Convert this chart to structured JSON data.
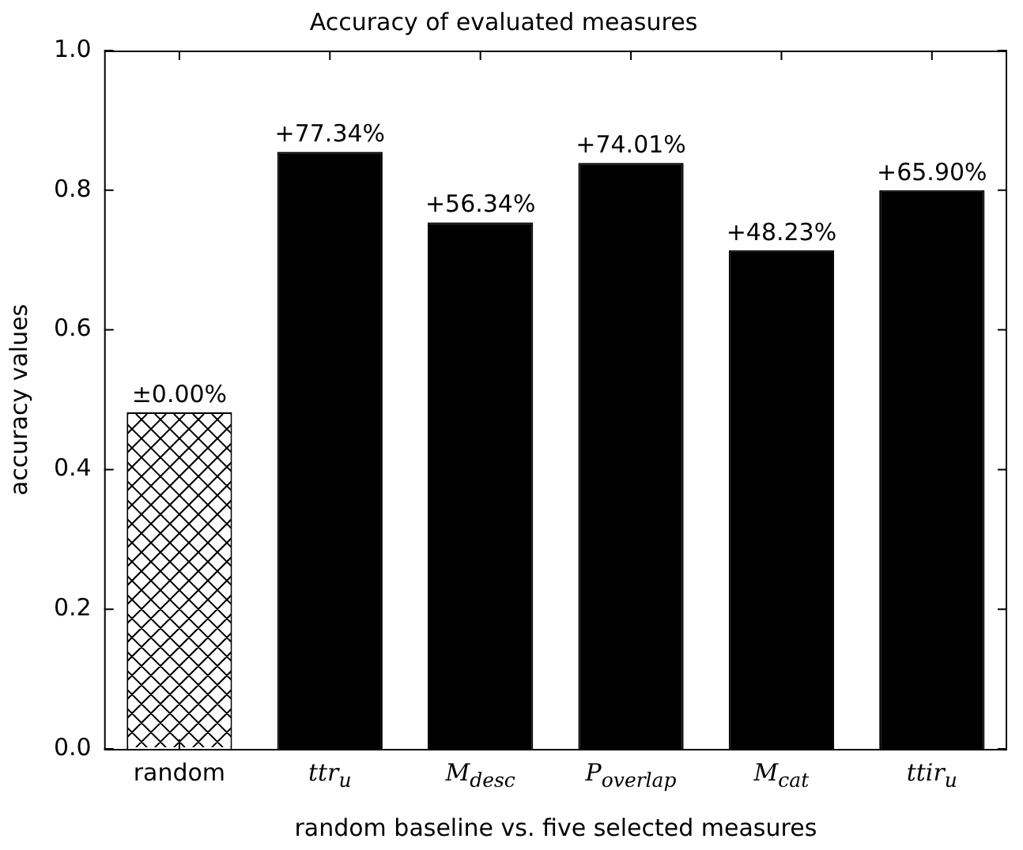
{
  "chart_data": {
    "type": "bar",
    "title": "Accuracy of evaluated measures",
    "xlabel": "random baseline vs. five selected measures",
    "ylabel": "accuracy values",
    "categories": [
      "random",
      "ttr$_{u}$",
      "M$_{desc}$",
      "P$_{overlap}$",
      "M$_{cat}$",
      "ttir$_{u}$"
    ],
    "values": [
      0.482,
      0.855,
      0.754,
      0.839,
      0.714,
      0.8
    ],
    "colors": [
      "#ffffff",
      "#000000",
      "#000000",
      "#000000",
      "#000000",
      "#000000"
    ],
    "annotations": [
      {
        "text": "±0.00%",
        "x": "random",
        "y": 0.482
      },
      {
        "text": "+77.34%",
        "x": "ttr$_{u}$",
        "y": 0.855
      },
      {
        "text": "+56.34%",
        "x": "M$_{desc}$",
        "y": 0.754
      },
      {
        "text": "+74.01%",
        "x": "P$_{overlap}$",
        "y": 0.839
      },
      {
        "text": "+48.23%",
        "x": "M$_{cat}$",
        "y": 0.714
      },
      {
        "text": "+65.90%",
        "x": "ttir$_{u}$",
        "y": 0.8
      }
    ],
    "ylim": [
      0,
      1
    ],
    "yticks": [
      {
        "value": 0,
        "label": "0.0"
      },
      {
        "value": 0.2,
        "label": "0.2"
      },
      {
        "value": 0.4,
        "label": "0.4"
      },
      {
        "value": 0.6,
        "label": "0.6"
      },
      {
        "value": 0.8,
        "label": "0.8"
      },
      {
        "value": 1,
        "label": "1.0"
      }
    ],
    "grid": false,
    "legend": false
  }
}
